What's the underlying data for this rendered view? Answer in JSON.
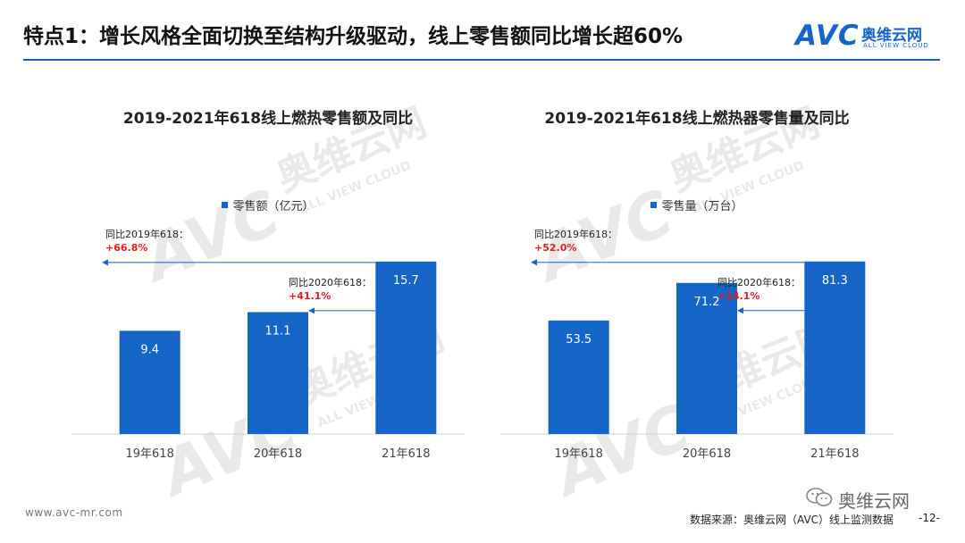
{
  "header": {
    "title": "特点1：增长风格全面切换至结构升级驱动，线上零售额同比增长超60%"
  },
  "logo": {
    "mark": "AVC",
    "name_cn": "奥维云网",
    "name_en": "ALL VIEW CLOUD",
    "color": "#1565c8"
  },
  "watermark": {
    "mark": "AVC",
    "name_cn": "奥维云网",
    "name_en": "ALL VIEW CLOUD"
  },
  "chart_data": [
    {
      "type": "bar",
      "title": "2019-2021年618线上燃热零售额及同比",
      "legend": {
        "label": "零售额（亿元）",
        "position": "top"
      },
      "categories": [
        "19年618",
        "20年618",
        "21年618"
      ],
      "series": [
        {
          "name": "零售额（亿元）",
          "values": [
            9.4,
            11.1,
            15.7
          ]
        }
      ],
      "data_labels": [
        "9.4",
        "11.1",
        "15.7"
      ],
      "ylim": [
        0,
        20
      ],
      "grid": false,
      "bar_color": "#1565c8",
      "annotations": [
        {
          "label": "同比2019年618：",
          "value": "+66.8%",
          "from": 2,
          "to": 0
        },
        {
          "label": "同比2020年618：",
          "value": "+41.1%",
          "from": 2,
          "to": 1
        }
      ]
    },
    {
      "type": "bar",
      "title": "2019-2021年618线上燃热器零售量及同比",
      "legend": {
        "label": "零售量（万台）",
        "position": "top"
      },
      "categories": [
        "19年618",
        "20年618",
        "21年618"
      ],
      "series": [
        {
          "name": "零售量（万台）",
          "values": [
            53.5,
            71.2,
            81.3
          ]
        }
      ],
      "data_labels": [
        "53.5",
        "71.2",
        "81.3"
      ],
      "ylim": [
        0,
        103.5
      ],
      "grid": false,
      "bar_color": "#1565c8",
      "annotations": [
        {
          "label": "同比2019年618：",
          "value": "+52.0%",
          "from": 2,
          "to": 0
        },
        {
          "label": "同比2020年618：",
          "value": "+14.1%",
          "from": 2,
          "to": 1
        }
      ]
    }
  ],
  "footer": {
    "url": "www.avc-mr.com",
    "source": "数据来源：奥维云网（AVC）线上监测数据",
    "page": "-12-",
    "wechat_name": "奥维云网"
  }
}
